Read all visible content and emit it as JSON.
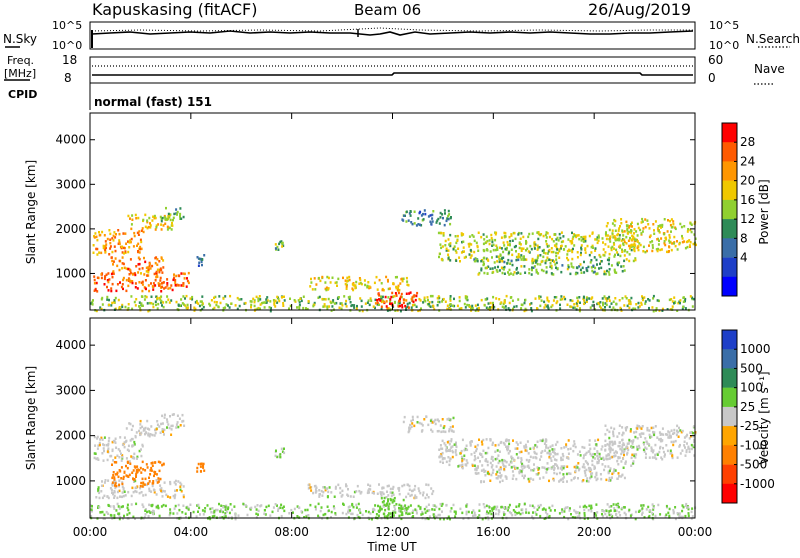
{
  "header": {
    "station": "Kapuskasing (fitACF)",
    "beam": "Beam 06",
    "date": "26/Aug/2019"
  },
  "top_panels": {
    "nsky_label": "N.Sky",
    "nsky_ticks": [
      "10^5",
      "10^0"
    ],
    "nsearch_label": "N.Search",
    "nsearch_ticks": [
      "10^5",
      "10^0"
    ],
    "freq_label_1": "Freq.",
    "freq_label_2": "[MHz]",
    "freq_ticks": [
      "18",
      "8"
    ],
    "nave_label": "Nave",
    "nave_ticks": [
      "60",
      "0"
    ],
    "cpid_label": "CPID",
    "cpid_value": "normal (fast) 151"
  },
  "axes": {
    "ylabel": "Slant Range [km]",
    "yticks": [
      "4000",
      "3000",
      "2000",
      "1000"
    ],
    "xlabel": "Time UT",
    "xticks": [
      "00:00",
      "04:00",
      "08:00",
      "12:00",
      "16:00",
      "20:00",
      "00:00"
    ]
  },
  "colorbars": {
    "power": {
      "label": "Power [dB]",
      "ticks": [
        "28",
        "24",
        "20",
        "16",
        "12",
        "8",
        "4"
      ],
      "colors": [
        "#ff0000",
        "#ff5a00",
        "#ff9600",
        "#f0c800",
        "#90d030",
        "#2e8b57",
        "#3a6ea8",
        "#1e3fc8",
        "#0000ff"
      ]
    },
    "velocity": {
      "label": "Velocity [m s⁻¹]",
      "ticks": [
        "1000",
        "500",
        "100",
        "25",
        "-25",
        "-100",
        "-500",
        "-1000"
      ],
      "colors": [
        "#1e3fc8",
        "#3a6ea8",
        "#2e8b57",
        "#66cc33",
        "#c8c8c8",
        "#ffa500",
        "#ff8000",
        "#ff4000",
        "#ff0000"
      ]
    }
  },
  "chart_data": [
    {
      "type": "heatmap",
      "title": "Power [dB]",
      "xlabel": "Time UT",
      "ylabel": "Slant Range [km]",
      "xlim_hours": [
        0,
        24
      ],
      "ylim_km": [
        180,
        4600
      ],
      "blobs": [
        {
          "t0": 0.1,
          "t1": 2.1,
          "r0": 1450,
          "r1": 2000,
          "value": 22
        },
        {
          "t0": 1.4,
          "t1": 3.3,
          "r0": 2000,
          "r1": 2350,
          "value": 18
        },
        {
          "t0": 2.8,
          "t1": 3.7,
          "r0": 2200,
          "r1": 2500,
          "value": 12
        },
        {
          "t0": 0.1,
          "t1": 3.9,
          "r0": 620,
          "r1": 1050,
          "value": 26
        },
        {
          "t0": 0.8,
          "t1": 2.9,
          "r0": 1000,
          "r1": 1400,
          "value": 24
        },
        {
          "t0": 0.0,
          "t1": 24.0,
          "r0": 180,
          "r1": 520,
          "value": 14
        },
        {
          "t0": 11.3,
          "t1": 13.0,
          "r0": 230,
          "r1": 600,
          "value": 28
        },
        {
          "t0": 8.6,
          "t1": 12.6,
          "r0": 650,
          "r1": 950,
          "value": 18
        },
        {
          "t0": 12.3,
          "t1": 14.4,
          "r0": 2100,
          "r1": 2450,
          "value": 8
        },
        {
          "t0": 13.8,
          "t1": 21.6,
          "r0": 1300,
          "r1": 1950,
          "value": 15
        },
        {
          "t0": 15.2,
          "t1": 21.2,
          "r0": 1000,
          "r1": 1350,
          "value": 12
        },
        {
          "t0": 20.4,
          "t1": 24.0,
          "r0": 1500,
          "r1": 2250,
          "value": 17
        },
        {
          "t0": 4.2,
          "t1": 4.5,
          "r0": 1200,
          "r1": 1450,
          "value": 8
        },
        {
          "t0": 7.3,
          "t1": 7.7,
          "r0": 1500,
          "r1": 1750,
          "value": 12
        }
      ]
    },
    {
      "type": "heatmap",
      "title": "Velocity [m s⁻¹]",
      "xlabel": "Time UT",
      "ylabel": "Slant Range [km]",
      "xlim_hours": [
        0,
        24
      ],
      "ylim_km": [
        180,
        4600
      ],
      "blobs": [
        {
          "t0": 0.1,
          "t1": 2.1,
          "r0": 1450,
          "r1": 2000,
          "value": 0
        },
        {
          "t0": 1.4,
          "t1": 3.3,
          "r0": 2000,
          "r1": 2350,
          "value": 0
        },
        {
          "t0": 2.8,
          "t1": 3.7,
          "r0": 2200,
          "r1": 2500,
          "value": 0
        },
        {
          "t0": 0.2,
          "t1": 3.7,
          "r0": 650,
          "r1": 1050,
          "value": 0
        },
        {
          "t0": 0.8,
          "t1": 2.9,
          "r0": 900,
          "r1": 1450,
          "value": -150
        },
        {
          "t0": 0.0,
          "t1": 24.0,
          "r0": 180,
          "r1": 520,
          "value": 30
        },
        {
          "t0": 11.3,
          "t1": 12.6,
          "r0": 230,
          "r1": 650,
          "value": 60
        },
        {
          "t0": 8.6,
          "t1": 13.6,
          "r0": 650,
          "r1": 950,
          "value": 0
        },
        {
          "t0": 12.3,
          "t1": 14.4,
          "r0": 2100,
          "r1": 2450,
          "value": 0
        },
        {
          "t0": 13.8,
          "t1": 21.6,
          "r0": 1300,
          "r1": 1950,
          "value": 0
        },
        {
          "t0": 15.2,
          "t1": 21.2,
          "r0": 1000,
          "r1": 1350,
          "value": 0
        },
        {
          "t0": 20.4,
          "t1": 24.0,
          "r0": 1500,
          "r1": 2250,
          "value": 0
        },
        {
          "t0": 4.2,
          "t1": 4.5,
          "r0": 1200,
          "r1": 1450,
          "value": -150
        },
        {
          "t0": 7.3,
          "t1": 7.7,
          "r0": 1500,
          "r1": 1750,
          "value": 40
        }
      ]
    }
  ]
}
